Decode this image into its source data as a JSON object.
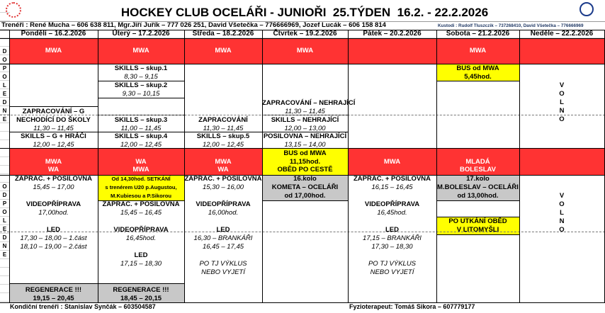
{
  "title": "HOCKEY CLUB OCELÁŘI - JUNIOŘI  25.TÝDEN  16.2. - 22.2.2026",
  "trainers": "Trenéři : René Mucha – 606 638 811, Mgr.Jiří Juřík – 777 026 251, David Všetečka – 776666969, Jozef Lucák – 606 158 814",
  "custodians": "Kustodi : Rudolf Tluszczik – 737268410, David Všetečka – 776666969",
  "side_labels": {
    "morning": [
      "D",
      "O",
      "P",
      "O",
      "L",
      "E",
      "D",
      "N",
      "E"
    ],
    "afternoon": [
      "O",
      "D",
      "P",
      "O",
      "L",
      "E",
      "D",
      "N",
      "E"
    ]
  },
  "days": [
    {
      "header": "Pondělí – 16.2.2026",
      "morning": {
        "bus": [
          "MWA"
        ],
        "blocks": [
          [
            "ZAPRACOVÁNÍ – G",
            "NECHODÍCÍ DO ŠKOLY",
            "11,30 – 11,45"
          ],
          [
            "SKILLS  – G + HRÁČI",
            "12,00 – 12,45"
          ]
        ]
      },
      "afternoon": {
        "bus": [
          "MWA",
          "WA"
        ],
        "blocks": [
          [
            "ZAPRAC. + POSILOVNA",
            "15,45 – 17,00"
          ],
          [
            "VIDEOPŘÍPRAVA",
            "17,00hod."
          ],
          [
            "LED",
            "17,30 – 18,00 – 1.část",
            "18,10 – 19,00 – 2.část"
          ],
          [
            "REGENERACE !!!",
            "19,15 – 20,45"
          ]
        ]
      }
    },
    {
      "header": "Úterý – 17.2.2026",
      "morning": {
        "bus": [
          "MWA"
        ],
        "blocks": [
          [
            "SKILLS  – skup.1",
            "8,30 – 9,15"
          ],
          [
            "SKILLS  – skup.2",
            "9,30 – 10,15"
          ],
          [
            "SKILLS  – skup.3",
            "11,00 – 11,45"
          ],
          [
            "SKILLS  – skup.4",
            "12,00 – 12,45"
          ]
        ]
      },
      "afternoon": {
        "bus": [
          "WA",
          "MWA"
        ],
        "blocks": [
          [
            "Od 14,30hod. SETKÁNÍ",
            "s trenérem U20 p.Augustou,",
            "M.Kubiesou a P.Sikorou"
          ],
          [
            "ZAPRAC. + POSILOVNA",
            "15,45 – 16,45"
          ],
          [
            "VIDEOPŘÍPRAVA",
            "16,45hod."
          ],
          [
            "LED",
            "17,15 – 18,30"
          ],
          [
            "REGENERACE !!!",
            "18,45 – 20,15"
          ]
        ]
      }
    },
    {
      "header": "Středa – 18.2.2026",
      "morning": {
        "bus": [
          "MWA"
        ],
        "blocks": [
          [
            "ZAPRACOVÁNÍ",
            "11,30 – 11,45"
          ],
          [
            "SKILLS – skup.5",
            "12,00 – 12,45"
          ]
        ]
      },
      "afternoon": {
        "bus": [
          "MWA",
          "WA"
        ],
        "blocks": [
          [
            "ZAPRAC. + POSILOVNA",
            "15,30 – 16,00"
          ],
          [
            "VIDEOPŘÍPRAVA",
            "16,00hod."
          ],
          [
            "LED",
            "16,30 – BRANKÁŘI",
            "16,45 – 17,45"
          ],
          [
            "PO TJ VÝKLUS",
            "NEBO VYJETÍ"
          ]
        ]
      }
    },
    {
      "header": "Čtvrtek – 19.2.2026",
      "morning": {
        "bus": [
          "MWA"
        ],
        "blocks": [
          [
            "ZAPRACOVÁNÍ – NEHRAJÍCÍ",
            "11,30 – 11,45"
          ],
          [
            "SKILLS – NEHRAJÍCÍ",
            "12,00 – 13,00"
          ],
          [
            "POSILOVNA – NEHRAJÍCÍ",
            "13,15 – 14,00"
          ]
        ]
      },
      "afternoon": {
        "bus": [
          "BUS od MWA",
          "11,15hod.",
          "OBĚD PO CESTĚ"
        ],
        "blocks": [
          [
            "16.kolo",
            "KOMETA – OCELÁŘI",
            "od 17,00hod."
          ]
        ]
      }
    },
    {
      "header": "Pátek – 20.2.2026",
      "morning": {
        "bus": [],
        "blocks": []
      },
      "afternoon": {
        "bus": [
          "MWA"
        ],
        "blocks": [
          [
            "ZAPRAC. + POSILOVNA",
            "16,15 – 16,45"
          ],
          [
            "VIDEOPŘÍPRAVA",
            "16,45hod."
          ],
          [
            "LED",
            "17,15 – BRANKÁŘI",
            "17,30 – 18,30"
          ],
          [
            "PO TJ VÝKLUS",
            "NEBO VYJETÍ"
          ]
        ]
      }
    },
    {
      "header": "Sobota – 21.2.2026",
      "morning": {
        "bus": [
          "MWA"
        ],
        "blocks": [
          [
            "BUS od MWA",
            "5,45hod."
          ]
        ]
      },
      "afternoon": {
        "bus": [
          "MLADÁ",
          "BOLESLAV"
        ],
        "blocks": [
          [
            "17.kolo",
            "M.BOLESLAV – OCELÁŘI",
            "od 13,00hod."
          ],
          [
            "PO UTKÁNÍ OBĚD",
            "V LITOMYŠLI"
          ]
        ]
      }
    },
    {
      "header": "Neděle – 22.2.2026",
      "morning": {
        "bus": [],
        "blocks": [
          [
            "V",
            "O",
            "L",
            "N",
            "O"
          ]
        ]
      },
      "afternoon": {
        "bus": [],
        "blocks": [
          [
            "V",
            "O",
            "L",
            "N",
            "O"
          ]
        ]
      }
    }
  ],
  "footer": {
    "conditioning": "Kondiční trenéři : Stanislav Synčák – 603504587",
    "physio": "Fyzioterapeut: Tomáš Sikora – 607779177"
  },
  "colors": {
    "bus_red": "#ff3333",
    "highlight_yellow": "#ffff00",
    "match_gray": "#c8c8c8",
    "logo_left": "#e03030",
    "logo_right": "#1a3a8a"
  }
}
